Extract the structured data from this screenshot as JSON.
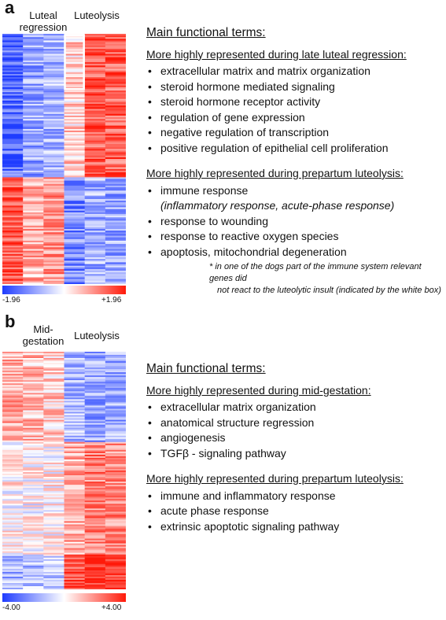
{
  "panel_a": {
    "letter": "a",
    "left_group_label": "Luteal\nregression",
    "right_group_label": "Luteolysis",
    "scale_min": "-1.96",
    "scale_max": "+1.96",
    "heading": "Main functional terms:",
    "group1_title": "More highly represented during late luteal regression:",
    "group1_items": [
      "extracellular matrix and matrix organization",
      "steroid hormone mediated signaling",
      "steroid hormone receptor activity",
      "regulation of gene expression",
      "negative regulation of transcription",
      "positive regulation of epithelial cell proliferation"
    ],
    "group2_title": "More highly represented during prepartum luteolysis:",
    "group2_items": [
      "immune response",
      "response to wounding",
      "response to reactive oxygen species",
      "apoptosis, mitochondrial degeneration"
    ],
    "group2_subnote": "(inflammatory response, acute-phase response)",
    "footnote_line1": "* in one of the dogs part of the immune system relevant genes did",
    "footnote_line2": "not react to the luteolytic insult (indicated by the white box)"
  },
  "panel_b": {
    "letter": "b",
    "left_group_label": "Mid-\ngestation",
    "right_group_label": "Luteolysis",
    "scale_min": "-4.00",
    "scale_max": "+4.00",
    "heading": "Main functional terms:",
    "group1_title": "More highly represented during mid-gestation:",
    "group1_items": [
      "extracellular matrix organization",
      "anatomical structure regression",
      "angiogenesis",
      "TGFβ - signaling pathway"
    ],
    "group2_title": "More highly represented during prepartum luteolysis:",
    "group2_items": [
      "immune and inflammatory response",
      "acute phase response",
      "extrinsic apoptotic signaling pathway"
    ]
  },
  "colors": {
    "low": "#1f3cff",
    "mid": "#ffffff",
    "high": "#ff1a0a"
  }
}
